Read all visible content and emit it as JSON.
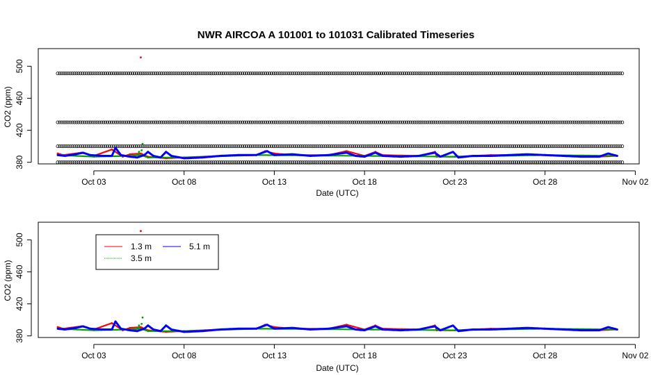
{
  "title": "NWR   AIRCOA  A   101001  to  101031   Calibrated Timeseries",
  "colors": {
    "s1_3": "#ff0000",
    "s3_5": "#00a000",
    "s5_1": "#0000ff",
    "cal": "#000000"
  },
  "chart_data": [
    {
      "type": "scatter",
      "title": "NWR   AIRCOA  A   101001  to  101031   Calibrated Timeseries",
      "xlabel": "Date (UTC)",
      "ylabel": "CO2 (ppm)",
      "xlim": [
        "2010-10-01",
        "2010-11-02"
      ],
      "ylim": [
        378,
        522
      ],
      "x_ticks": [
        "Oct 03",
        "Oct 08",
        "Oct 13",
        "Oct 18",
        "Oct 23",
        "Oct 28",
        "Nov 02"
      ],
      "y_ticks": [
        380,
        420,
        460,
        500
      ],
      "calibration_levels": [
        380,
        400,
        430,
        491
      ],
      "series": [
        {
          "name": "1.3 m",
          "color": "#ff0000",
          "points": [
            [
              "2010-10-01",
              391
            ],
            [
              "2010-10-01.3",
              389
            ],
            [
              "2010-10-02.3",
              392
            ],
            [
              "2010-10-03",
              388
            ],
            [
              "2010-10-04",
              396
            ],
            [
              "2010-10-04.6",
              387
            ],
            [
              "2010-10-05",
              390
            ],
            [
              "2010-10-05.6",
              391
            ],
            [
              "2010-10-06",
              387
            ],
            [
              "2010-10-07",
              385
            ],
            [
              "2010-10-08",
              386
            ],
            [
              "2010-10-10",
              388
            ],
            [
              "2010-10-12",
              389
            ],
            [
              "2010-10-12.5",
              394
            ],
            [
              "2010-10-13",
              391
            ],
            [
              "2010-10-14",
              389
            ],
            [
              "2010-10-16",
              389
            ],
            [
              "2010-10-17",
              394
            ],
            [
              "2010-10-18",
              388
            ],
            [
              "2010-10-18.6",
              393
            ],
            [
              "2010-10-19",
              389
            ],
            [
              "2010-10-21",
              388
            ],
            [
              "2010-10-21.9",
              393
            ],
            [
              "2010-10-22",
              387
            ],
            [
              "2010-10-23",
              387
            ],
            [
              "2010-10-25",
              389
            ],
            [
              "2010-10-28",
              389
            ],
            [
              "2010-10-31",
              387
            ],
            [
              "2010-11-01",
              388
            ]
          ],
          "outliers": [
            [
              "2010-10-05.6",
              511
            ]
          ]
        },
        {
          "name": "3.5 m",
          "color": "#00a000",
          "points": [
            [
              "2010-10-01",
              389
            ],
            [
              "2010-10-03",
              387
            ],
            [
              "2010-10-05",
              388
            ],
            [
              "2010-10-05.6",
              389
            ],
            [
              "2010-10-06",
              386
            ],
            [
              "2010-10-08",
              386
            ],
            [
              "2010-10-12",
              389
            ],
            [
              "2010-10-18",
              388
            ],
            [
              "2010-10-23",
              387
            ],
            [
              "2010-10-28",
              389
            ],
            [
              "2010-11-01",
              388
            ]
          ],
          "outliers": [
            [
              "2010-10-05.7",
              403
            ],
            [
              "2010-10-05.5",
              393
            ],
            [
              "2010-10-05.45",
              390
            ],
            [
              "2010-10-05.65",
              395
            ]
          ]
        },
        {
          "name": "5.1 m",
          "color": "#0000ff",
          "points": [
            [
              "2010-10-01",
              389
            ],
            [
              "2010-10-01.4",
              388
            ],
            [
              "2010-10-02",
              390
            ],
            [
              "2010-10-02.4",
              392
            ],
            [
              "2010-10-02.8",
              389
            ],
            [
              "2010-10-03.5",
              388
            ],
            [
              "2010-10-04",
              388
            ],
            [
              "2010-10-04.2",
              398
            ],
            [
              "2010-10-04.5",
              389
            ],
            [
              "2010-10-05",
              387
            ],
            [
              "2010-10-05.4",
              386
            ],
            [
              "2010-10-05.8",
              389
            ],
            [
              "2010-10-06",
              393
            ],
            [
              "2010-10-06.3",
              388
            ],
            [
              "2010-10-06.7",
              386
            ],
            [
              "2010-10-07",
              393
            ],
            [
              "2010-10-07.3",
              388
            ],
            [
              "2010-10-08",
              385
            ],
            [
              "2010-10-09",
              386
            ],
            [
              "2010-10-10",
              388
            ],
            [
              "2010-10-11",
              389
            ],
            [
              "2010-10-12",
              389
            ],
            [
              "2010-10-12.6",
              394
            ],
            [
              "2010-10-13",
              389
            ],
            [
              "2010-10-14",
              390
            ],
            [
              "2010-10-15",
              388
            ],
            [
              "2010-10-16",
              389
            ],
            [
              "2010-10-17",
              392
            ],
            [
              "2010-10-17.5",
              388
            ],
            [
              "2010-10-18",
              387
            ],
            [
              "2010-10-18.6",
              392
            ],
            [
              "2010-10-19",
              388
            ],
            [
              "2010-10-20",
              387
            ],
            [
              "2010-10-21",
              388
            ],
            [
              "2010-10-21.9",
              392
            ],
            [
              "2010-10-22.2",
              387
            ],
            [
              "2010-10-22.9",
              393
            ],
            [
              "2010-10-23.2",
              386
            ],
            [
              "2010-10-24",
              388
            ],
            [
              "2010-10-25",
              388
            ],
            [
              "2010-10-26",
              389
            ],
            [
              "2010-10-27",
              390
            ],
            [
              "2010-10-28",
              389
            ],
            [
              "2010-10-29",
              388
            ],
            [
              "2010-10-30",
              387
            ],
            [
              "2010-10-31",
              387
            ],
            [
              "2010-10-31.5",
              391
            ],
            [
              "2010-11-01",
              388
            ]
          ]
        }
      ],
      "legend": null
    },
    {
      "type": "scatter",
      "title": "",
      "xlabel": "Date (UTC)",
      "ylabel": "CO2 (ppm)",
      "xlim": [
        "2010-10-01",
        "2010-11-02"
      ],
      "ylim": [
        378,
        522
      ],
      "x_ticks": [
        "Oct 03",
        "Oct 08",
        "Oct 13",
        "Oct 18",
        "Oct 23",
        "Oct 28",
        "Nov 02"
      ],
      "y_ticks": [
        380,
        420,
        460,
        500
      ],
      "legend": {
        "placement": "top-left",
        "entries": [
          "1.3 m",
          "5.1 m",
          "3.5 m"
        ]
      }
    }
  ]
}
